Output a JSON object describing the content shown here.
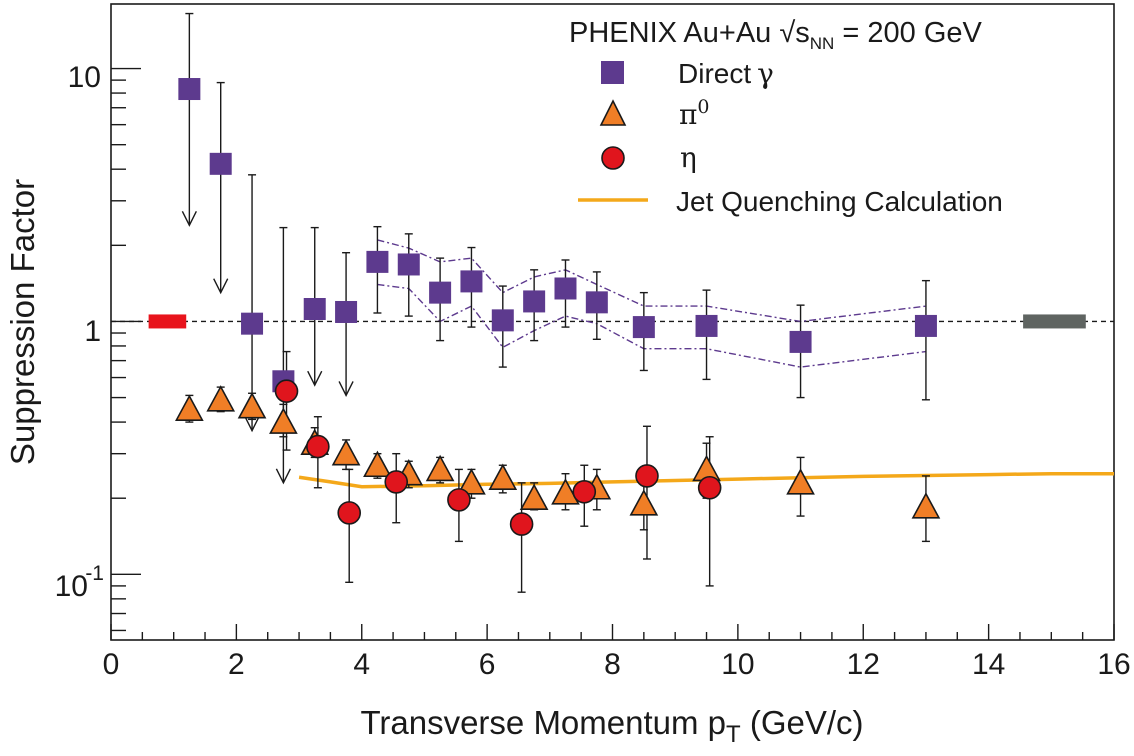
{
  "chart_data": {
    "type": "scatter",
    "title": "PHENIX  Au+Au √s",
    "title_subscript": "NN",
    "title_suffix": " = 200 GeV",
    "xlabel": "Transverse Momentum p",
    "xlabel_subscript": "T",
    "xlabel_suffix": " (GeV/c)",
    "ylabel": "Suppression Factor",
    "xlim": [
      0,
      16
    ],
    "ylim": [
      0.055,
      18
    ],
    "yscale": "log",
    "x_ticks": [
      "0",
      "2",
      "4",
      "6",
      "8",
      "10",
      "12",
      "14",
      "16"
    ],
    "y_tick_labels": {
      "one": "1",
      "ten": "10",
      "tenth_base": "10",
      "tenth_exp": "-1"
    },
    "reference_line": 1,
    "norm_box_left": {
      "x": [
        0.6,
        1.2
      ],
      "value": 1,
      "color": "#e8141c"
    },
    "norm_box_right": {
      "x": [
        14.55,
        15.55
      ],
      "value": 1,
      "color": "#5f6461"
    },
    "series": [
      {
        "name": "Direct",
        "name_symbol": "γ",
        "marker": "square",
        "color": "#5d3a8e",
        "points": [
          {
            "x": 1.25,
            "y": 8.3,
            "err": [
              0,
              16.5
            ],
            "arrow_to": 2.4
          },
          {
            "x": 1.75,
            "y": 4.2,
            "err": [
              0,
              8.8
            ],
            "arrow_to": 1.3
          },
          {
            "x": 2.25,
            "y": 0.98,
            "err": [
              0,
              3.8
            ],
            "arrow_to": 0.37
          },
          {
            "x": 2.75,
            "y": 0.58,
            "err": [
              0,
              2.35
            ],
            "arrow_to": 0.23
          },
          {
            "x": 3.25,
            "y": 1.12,
            "err": [
              0,
              2.35
            ],
            "arrow_to": 0.56
          },
          {
            "x": 3.75,
            "y": 1.09,
            "err": [
              0,
              1.87
            ],
            "arrow_to": 0.51
          },
          {
            "x": 4.25,
            "y": 1.72,
            "err": [
              1.08,
              2.37
            ]
          },
          {
            "x": 4.75,
            "y": 1.68,
            "err": [
              1.05,
              2.22
            ]
          },
          {
            "x": 5.25,
            "y": 1.3,
            "err": [
              0.84,
              1.78
            ]
          },
          {
            "x": 5.75,
            "y": 1.44,
            "err": [
              0.95,
              1.96
            ]
          },
          {
            "x": 6.25,
            "y": 1.01,
            "err": [
              0.66,
              1.38
            ]
          },
          {
            "x": 6.75,
            "y": 1.2,
            "err": [
              0.84,
              1.6
            ]
          },
          {
            "x": 7.25,
            "y": 1.35,
            "err": [
              0.95,
              1.75
            ]
          },
          {
            "x": 7.75,
            "y": 1.19,
            "err": [
              0.85,
              1.57
            ]
          },
          {
            "x": 8.5,
            "y": 0.95,
            "err": [
              0.64,
              1.3
            ]
          },
          {
            "x": 9.5,
            "y": 0.96,
            "err": [
              0.59,
              1.33
            ]
          },
          {
            "x": 11.0,
            "y": 0.83,
            "err": [
              0.5,
              1.16
            ]
          },
          {
            "x": 13.0,
            "y": 0.96,
            "err": [
              0.49,
              1.45
            ]
          }
        ],
        "band_upper": {
          "x": [
            4.25,
            4.75,
            5.25,
            5.75,
            6.25,
            6.75,
            7.25,
            7.75,
            8.5,
            9.5,
            11.0,
            13.0
          ],
          "y": [
            2.1,
            1.95,
            1.72,
            1.78,
            1.3,
            1.5,
            1.6,
            1.4,
            1.15,
            1.15,
            1.0,
            1.15
          ]
        },
        "band_lower": {
          "x": [
            4.25,
            4.75,
            5.25,
            5.75,
            6.25,
            6.75,
            7.25,
            7.75,
            8.5,
            9.5,
            11.0,
            13.0
          ],
          "y": [
            1.4,
            1.35,
            1.0,
            1.15,
            0.79,
            0.92,
            1.05,
            0.98,
            0.78,
            0.78,
            0.66,
            0.76
          ]
        }
      },
      {
        "name": "π",
        "name_superscript": "0",
        "marker": "triangle",
        "color": "#f07e26",
        "points": [
          {
            "x": 1.25,
            "y": 0.45,
            "err": [
              0.4,
              0.51
            ]
          },
          {
            "x": 1.75,
            "y": 0.49,
            "err": [
              0.44,
              0.55
            ]
          },
          {
            "x": 2.25,
            "y": 0.46,
            "err": [
              0.41,
              0.52
            ]
          },
          {
            "x": 2.75,
            "y": 0.4,
            "err": [
              0.35,
              0.47
            ]
          },
          {
            "x": 3.25,
            "y": 0.33,
            "err": [
              0.29,
              0.38
            ]
          },
          {
            "x": 3.75,
            "y": 0.3,
            "err": [
              0.26,
              0.34
            ]
          },
          {
            "x": 4.25,
            "y": 0.27,
            "err": [
              0.24,
              0.3
            ]
          },
          {
            "x": 4.75,
            "y": 0.25,
            "err": [
              0.22,
              0.28
            ]
          },
          {
            "x": 5.25,
            "y": 0.26,
            "err": [
              0.23,
              0.29
            ]
          },
          {
            "x": 5.75,
            "y": 0.23,
            "err": [
              0.2,
              0.26
            ]
          },
          {
            "x": 6.25,
            "y": 0.24,
            "err": [
              0.21,
              0.27
            ]
          },
          {
            "x": 6.75,
            "y": 0.2,
            "err": [
              0.18,
              0.23
            ]
          },
          {
            "x": 7.25,
            "y": 0.21,
            "err": [
              0.18,
              0.25
            ]
          },
          {
            "x": 7.75,
            "y": 0.22,
            "err": [
              0.18,
              0.26
            ]
          },
          {
            "x": 8.5,
            "y": 0.19,
            "err": [
              0.15,
              0.24
            ]
          },
          {
            "x": 9.5,
            "y": 0.26,
            "err": [
              0.2,
              0.33
            ]
          },
          {
            "x": 11.0,
            "y": 0.23,
            "err": [
              0.17,
              0.29
            ]
          },
          {
            "x": 13.0,
            "y": 0.185,
            "err": [
              0.135,
              0.245
            ]
          }
        ]
      },
      {
        "name": "η",
        "marker": "circle",
        "color": "#e0151d",
        "points": [
          {
            "x": 2.8,
            "y": 0.53,
            "err": [
              0.31,
              0.76
            ]
          },
          {
            "x": 3.3,
            "y": 0.32,
            "err": [
              0.22,
              0.42
            ]
          },
          {
            "x": 3.8,
            "y": 0.175,
            "err": [
              0.093,
              0.26
            ]
          },
          {
            "x": 4.55,
            "y": 0.232,
            "err": [
              0.16,
              0.3
            ]
          },
          {
            "x": 5.55,
            "y": 0.197,
            "err": [
              0.135,
              0.26
            ]
          },
          {
            "x": 6.55,
            "y": 0.158,
            "err": [
              0.085,
              0.23
            ]
          },
          {
            "x": 7.55,
            "y": 0.212,
            "err": [
              0.155,
              0.27
            ]
          },
          {
            "x": 8.55,
            "y": 0.245,
            "err": [
              0.115,
              0.385
            ]
          },
          {
            "x": 9.55,
            "y": 0.22,
            "err": [
              0.09,
              0.35
            ]
          }
        ]
      },
      {
        "name": "Jet Quenching Calculation",
        "marker": "line",
        "color": "#f4a81a",
        "x": [
          3.0,
          3.5,
          4.0,
          5.0,
          6.0,
          7.0,
          8.0,
          9.0,
          10.0,
          11.0,
          12.0,
          13.0,
          14.0,
          15.0,
          16.0
        ],
        "y": [
          0.242,
          0.232,
          0.222,
          0.224,
          0.227,
          0.229,
          0.232,
          0.235,
          0.238,
          0.241,
          0.244,
          0.246,
          0.248,
          0.25,
          0.25
        ]
      }
    ],
    "legend_position": "top-right"
  }
}
